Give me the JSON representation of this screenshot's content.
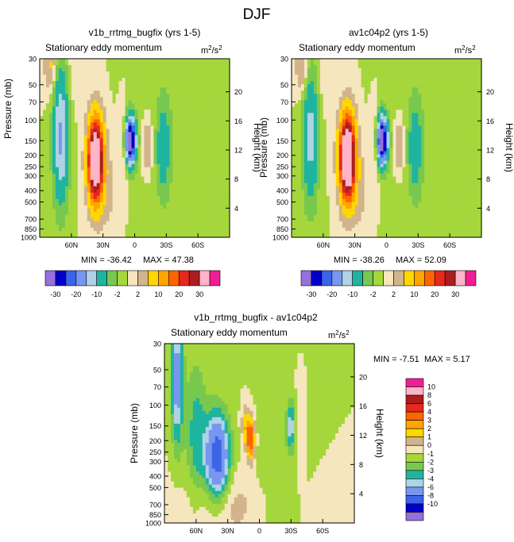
{
  "title": "DJF",
  "chart_data": [
    {
      "type": "contour",
      "title": "v1b_rrtmg_bugfix (yrs 1-5)",
      "subtitle": "Stationary eddy momentum",
      "units": "m²/s²",
      "units_base": "m",
      "units_exp1": "2",
      "units_mid": "/s",
      "units_exp2": "2",
      "xlabel": "",
      "ylabel": "Pressure (mb)",
      "ylabel_right": "Height (km)",
      "x_ticks": [
        "60N",
        "30N",
        "0",
        "30S",
        "60S"
      ],
      "x_tick_lat": [
        60,
        30,
        0,
        -30,
        -60
      ],
      "xlim": [
        90,
        -90
      ],
      "y_ticks": [
        "30",
        "50",
        "70",
        "100",
        "150",
        "200",
        "250",
        "300",
        "400",
        "500",
        "700",
        "850",
        "1000"
      ],
      "ylim": [
        1000,
        30
      ],
      "y_right_ticks": [
        "20",
        "16",
        "12",
        "8",
        "4"
      ],
      "min_label": "MIN = -36.42",
      "max_label": "MAX =  47.38",
      "min": -36.42,
      "max": 47.38,
      "features": [
        {
          "lat": 37,
          "p": 220,
          "amp": 47.38,
          "slat": 5,
          "sp": 0.55
        },
        {
          "lat": 70,
          "p": 140,
          "amp": -16,
          "slat": 5,
          "sp": 0.9
        },
        {
          "lat": 4,
          "p": 150,
          "amp": -36.42,
          "slat": 3.5,
          "sp": 0.32
        },
        {
          "lat": -27,
          "p": 170,
          "amp": -9,
          "slat": 4,
          "sp": 0.55
        },
        {
          "lat": -12,
          "p": 170,
          "amp": 6,
          "slat": 3,
          "sp": 0.35
        },
        {
          "lat": 10,
          "p": 160,
          "amp": 4,
          "slat": 3,
          "sp": 0.5
        },
        {
          "lat": 80,
          "p": 35,
          "amp": 6,
          "slat": 4,
          "sp": 0.35
        },
        {
          "lat": 58,
          "p": 40,
          "amp": 1.5,
          "slat": 5,
          "sp": 0.5
        },
        {
          "lat": -45,
          "p": 200,
          "amp": -1.5,
          "slat": 25,
          "sp": 3.5
        },
        {
          "lat": 25,
          "p": 420,
          "amp": 2.5,
          "slat": 8,
          "sp": 0.6
        }
      ]
    },
    {
      "type": "contour",
      "title": "av1c04p2 (yrs 1-5)",
      "subtitle": "Stationary eddy momentum",
      "units": "m²/s²",
      "units_base": "m",
      "units_exp1": "2",
      "units_mid": "/s",
      "units_exp2": "2",
      "xlabel": "",
      "ylabel": "Pressure (mb)",
      "ylabel_right": "Height (km)",
      "x_ticks": [
        "60N",
        "30N",
        "0",
        "30S",
        "60S"
      ],
      "x_tick_lat": [
        60,
        30,
        0,
        -30,
        -60
      ],
      "xlim": [
        90,
        -90
      ],
      "y_ticks": [
        "30",
        "50",
        "70",
        "100",
        "150",
        "200",
        "250",
        "300",
        "400",
        "500",
        "700",
        "850",
        "1000"
      ],
      "ylim": [
        1000,
        30
      ],
      "y_right_ticks": [
        "20",
        "16",
        "12",
        "8",
        "4"
      ],
      "min_label": "MIN = -38.26",
      "max_label": "MAX =  52.09",
      "min": -38.26,
      "max": 52.09,
      "features": [
        {
          "lat": 37,
          "p": 210,
          "amp": 52.09,
          "slat": 5,
          "sp": 0.55
        },
        {
          "lat": 72,
          "p": 140,
          "amp": -12,
          "slat": 5,
          "sp": 0.9
        },
        {
          "lat": 4,
          "p": 150,
          "amp": -38.26,
          "slat": 3.5,
          "sp": 0.32
        },
        {
          "lat": -27,
          "p": 170,
          "amp": -9,
          "slat": 4,
          "sp": 0.55
        },
        {
          "lat": -12,
          "p": 170,
          "amp": 6,
          "slat": 3,
          "sp": 0.35
        },
        {
          "lat": 10,
          "p": 160,
          "amp": 4,
          "slat": 3,
          "sp": 0.5
        },
        {
          "lat": 80,
          "p": 35,
          "amp": 6,
          "slat": 4,
          "sp": 0.35
        },
        {
          "lat": 58,
          "p": 40,
          "amp": 1.5,
          "slat": 5,
          "sp": 0.5
        },
        {
          "lat": -45,
          "p": 200,
          "amp": -1.5,
          "slat": 25,
          "sp": 3.5
        },
        {
          "lat": 25,
          "p": 420,
          "amp": 2.5,
          "slat": 8,
          "sp": 0.6
        }
      ]
    },
    {
      "type": "contour",
      "title": "v1b_rrtmg_bugfix - av1c04p2",
      "subtitle": "Stationary eddy momentum",
      "units": "m²/s²",
      "units_base": "m",
      "units_exp1": "2",
      "units_mid": "/s",
      "units_exp2": "2",
      "xlabel": "",
      "ylabel": "Pressure (mb)",
      "ylabel_right": "Height (km)",
      "x_ticks": [
        "60N",
        "30N",
        "0",
        "30S",
        "60S"
      ],
      "x_tick_lat": [
        60,
        30,
        0,
        -30,
        -60
      ],
      "xlim": [
        90,
        -90
      ],
      "y_ticks": [
        "30",
        "50",
        "70",
        "100",
        "150",
        "200",
        "250",
        "300",
        "400",
        "500",
        "700",
        "850",
        "1000"
      ],
      "ylim": [
        1000,
        30
      ],
      "y_right_ticks": [
        "20",
        "16",
        "12",
        "8",
        "4"
      ],
      "min_label": "MIN =  -7.51",
      "max_label": "MAX =   5.17",
      "min": -7.51,
      "max": 5.17,
      "features": [
        {
          "lat": 40,
          "p": 280,
          "amp": -7.51,
          "slat": 8,
          "sp": 0.6
        },
        {
          "lat": 78,
          "p": 60,
          "amp": -5,
          "slat": 4,
          "sp": 0.9
        },
        {
          "lat": 60,
          "p": 180,
          "amp": -2.5,
          "slat": 7,
          "sp": 1.0
        },
        {
          "lat": 8,
          "p": 195,
          "amp": 5.17,
          "slat": 3,
          "sp": 0.3
        },
        {
          "lat": 13,
          "p": 150,
          "amp": 2.5,
          "slat": 3,
          "sp": 0.3
        },
        {
          "lat": -30,
          "p": 150,
          "amp": -3.5,
          "slat": 3,
          "sp": 0.35
        },
        {
          "lat": -38,
          "p": 150,
          "amp": 1.2,
          "slat": 3,
          "sp": 0.5
        },
        {
          "lat": -10,
          "p": 400,
          "amp": -0.8,
          "slat": 15,
          "sp": 1.2
        },
        {
          "lat": 30,
          "p": 700,
          "amp": 1.5,
          "slat": 30,
          "sp": 0.5
        }
      ]
    }
  ],
  "colorbar_main": {
    "levels": [
      -30,
      -25,
      -20,
      -15,
      -10,
      -5,
      -2,
      0,
      2,
      5,
      10,
      15,
      20,
      25,
      30
    ],
    "labels": [
      "-30",
      "-20",
      "-10",
      "-2",
      "2",
      "10",
      "20",
      "30"
    ],
    "label_index": [
      0,
      2,
      4,
      6,
      8,
      10,
      12,
      14
    ],
    "colors": [
      "#9670dc",
      "#0000c8",
      "#3c64e6",
      "#7896f0",
      "#afd2e6",
      "#1eb4a0",
      "#78c850",
      "#a5d73c",
      "#f5e6be",
      "#d2b48c",
      "#ffd700",
      "#ffa500",
      "#ff6400",
      "#e6281e",
      "#aa1e1e",
      "#ffb4c8",
      "#f01e96"
    ]
  },
  "colorbar_diff": {
    "levels": [
      -10,
      -8,
      -6,
      -4,
      -3,
      -2,
      -1,
      0,
      1,
      2,
      3,
      4,
      6,
      8,
      10
    ],
    "labels": [
      "10",
      "8",
      "6",
      "4",
      "3",
      "2",
      "1",
      "0",
      "-1",
      "-2",
      "-3",
      "-4",
      "-6",
      "-8",
      "-10"
    ],
    "colors": [
      "#9670dc",
      "#0000c8",
      "#3c64e6",
      "#7896f0",
      "#afd2e6",
      "#1eb4a0",
      "#78c850",
      "#a5d73c",
      "#f5e6be",
      "#d2b48c",
      "#ffd700",
      "#ffa500",
      "#ff6400",
      "#e6281e",
      "#aa1e1e",
      "#ffb4c8",
      "#f01e96"
    ]
  }
}
